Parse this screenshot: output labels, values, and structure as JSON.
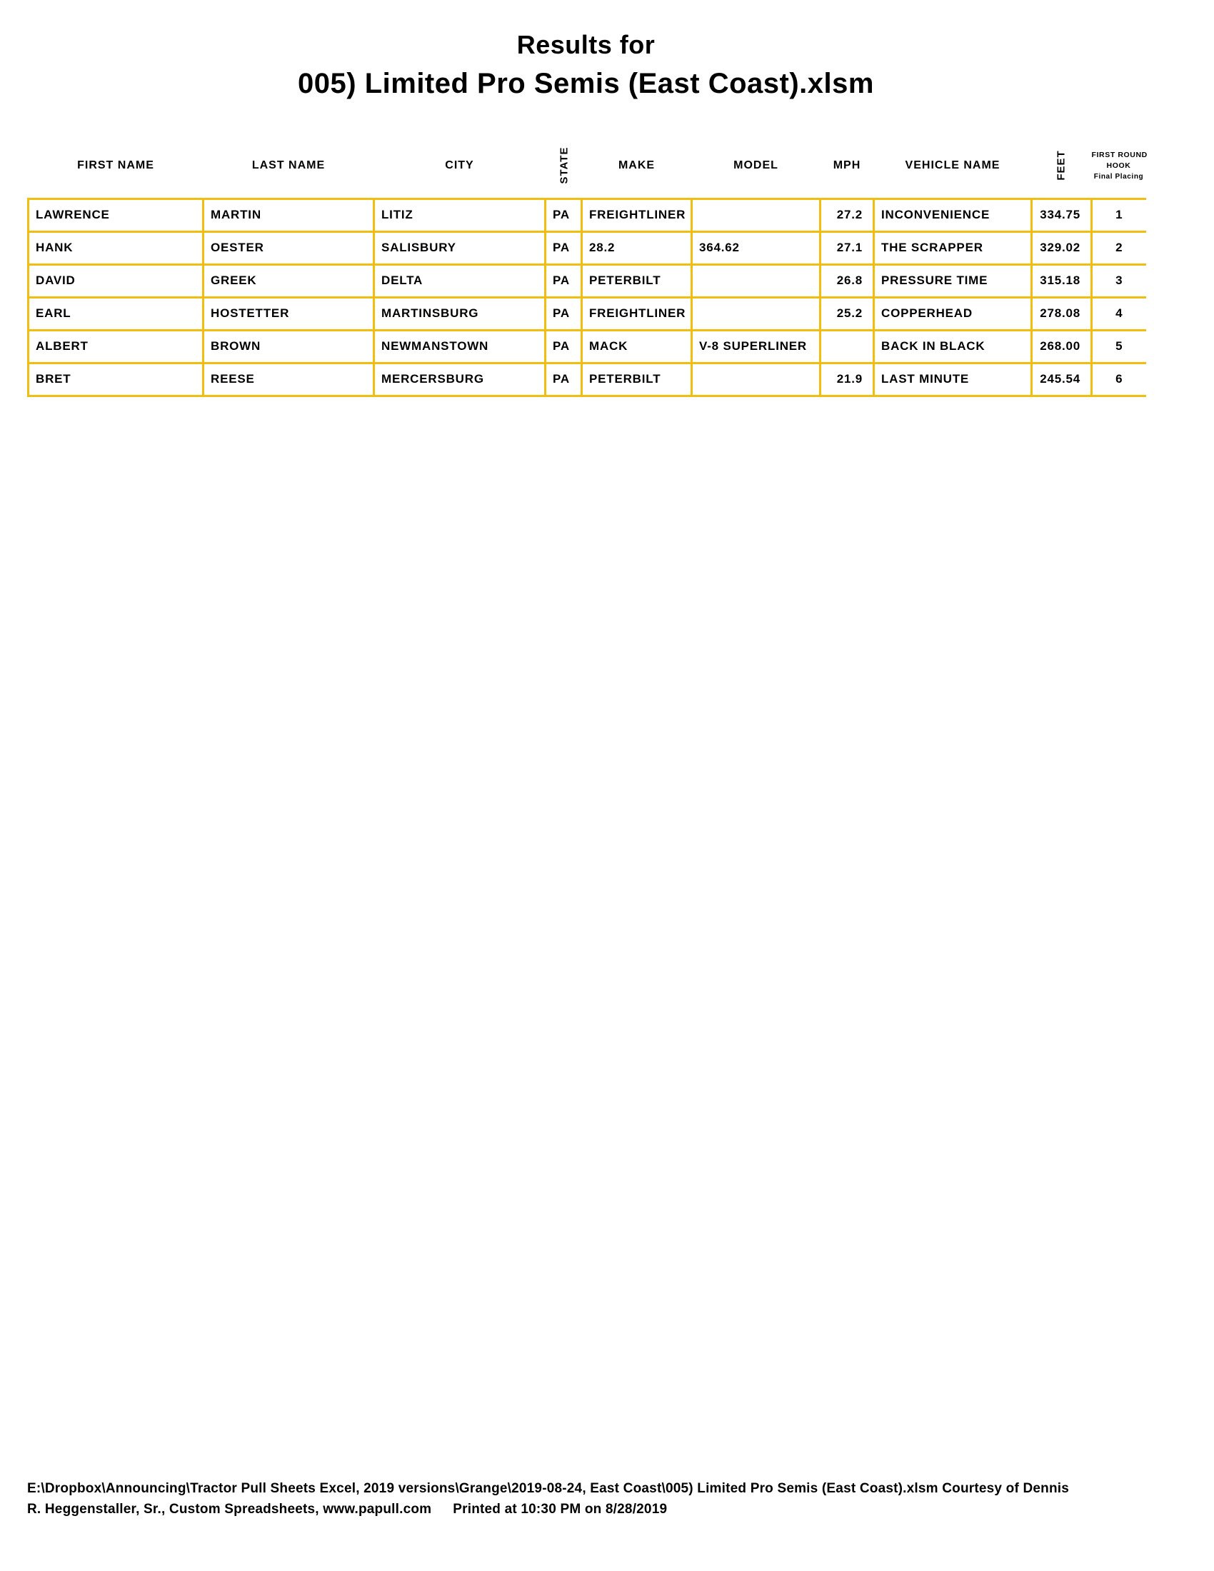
{
  "colors": {
    "table_border": "#F0BE10"
  },
  "title": {
    "line1": "Results for",
    "line2": "005) Limited Pro Semis (East Coast).xlsm"
  },
  "table": {
    "columns": [
      {
        "key": "first-name",
        "label": "FIRST NAME"
      },
      {
        "key": "last-name",
        "label": "LAST NAME"
      },
      {
        "key": "city",
        "label": "CITY"
      },
      {
        "key": "state",
        "label": "STATE"
      },
      {
        "key": "make",
        "label": "MAKE"
      },
      {
        "key": "model",
        "label": "MODEL"
      },
      {
        "key": "mph",
        "label": "MPH"
      },
      {
        "key": "vehicle-name",
        "label": "VEHICLE NAME"
      },
      {
        "key": "feet",
        "label": "FEET"
      },
      {
        "key": "placing",
        "label_lines": [
          "FIRST ROUND",
          "HOOK",
          "Final Placing"
        ]
      }
    ],
    "rows": [
      [
        "LAWRENCE",
        "MARTIN",
        "LITIZ",
        "PA",
        "FREIGHTLINER",
        "",
        "27.2",
        "INCONVENIENCE",
        "334.75",
        "1"
      ],
      [
        "HANK",
        "OESTER",
        "SALISBURY",
        "PA",
        "28.2",
        "364.62",
        "27.1",
        "THE SCRAPPER",
        "329.02",
        "2"
      ],
      [
        "DAVID",
        "GREEK",
        "DELTA",
        "PA",
        "PETERBILT",
        "",
        "26.8",
        "PRESSURE TIME",
        "315.18",
        "3"
      ],
      [
        "EARL",
        "HOSTETTER",
        "MARTINSBURG",
        "PA",
        "FREIGHTLINER",
        "",
        "25.2",
        "COPPERHEAD",
        "278.08",
        "4"
      ],
      [
        "ALBERT",
        "BROWN",
        "NEWMANSTOWN",
        "PA",
        "MACK",
        "V-8 SUPERLINER",
        "",
        "BACK IN BLACK",
        "268.00",
        "5"
      ],
      [
        "BRET",
        "REESE",
        "MERCERSBURG",
        "PA",
        "PETERBILT",
        "",
        "21.9",
        "LAST MINUTE",
        "245.54",
        "6"
      ]
    ]
  },
  "footer": {
    "line1": "E:\\Dropbox\\Announcing\\Tractor Pull Sheets Excel, 2019 versions\\Grange\\2019-08-24, East Coast\\005) Limited Pro Semis (East Coast).xlsm  Courtesy of Dennis",
    "line2_left": "R. Heggenstaller, Sr., Custom Spreadsheets, www.papull.com",
    "line2_right": "Printed at 10:30 PM on 8/28/2019"
  }
}
